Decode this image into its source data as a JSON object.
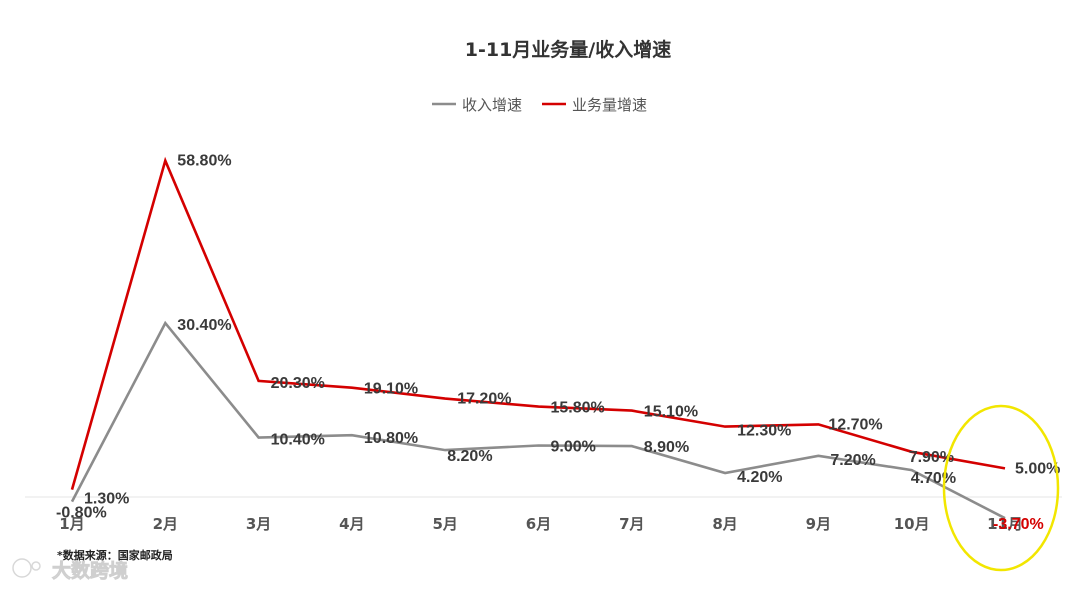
{
  "chart_data": {
    "type": "line",
    "title": "1-11月业务量/收入增速",
    "categories": [
      "1月",
      "2月",
      "3月",
      "4月",
      "5月",
      "6月",
      "7月",
      "8月",
      "9月",
      "10月",
      "11月"
    ],
    "series": [
      {
        "name": "收入增速",
        "color": "#8c8c8c",
        "values": [
          -0.8,
          30.4,
          10.4,
          10.8,
          8.2,
          9.0,
          8.9,
          4.2,
          7.2,
          4.7,
          -3.7
        ],
        "labels": [
          "-0.80%",
          "30.40%",
          "10.40%",
          "10.80%",
          "8.20%",
          "9.00%",
          "8.90%",
          "4.20%",
          "7.20%",
          "4.70%",
          "-3.70%"
        ]
      },
      {
        "name": "业务量增速",
        "color": "#d40000",
        "values": [
          1.3,
          58.8,
          20.3,
          19.1,
          17.2,
          15.8,
          15.1,
          12.3,
          12.7,
          7.9,
          5.0
        ],
        "labels": [
          "1.30%",
          "58.80%",
          "20.30%",
          "19.10%",
          "17.20%",
          "15.80%",
          "15.10%",
          "12.30%",
          "12.70%",
          "7.90%",
          "5.00%"
        ]
      }
    ],
    "highlight": {
      "category": "11月",
      "color": "#f2e600",
      "label_color": "#d40000"
    },
    "legend_position": "top-center",
    "grid": false
  },
  "source_note": "*数据来源：国家邮政局",
  "watermark": "大数跨境"
}
